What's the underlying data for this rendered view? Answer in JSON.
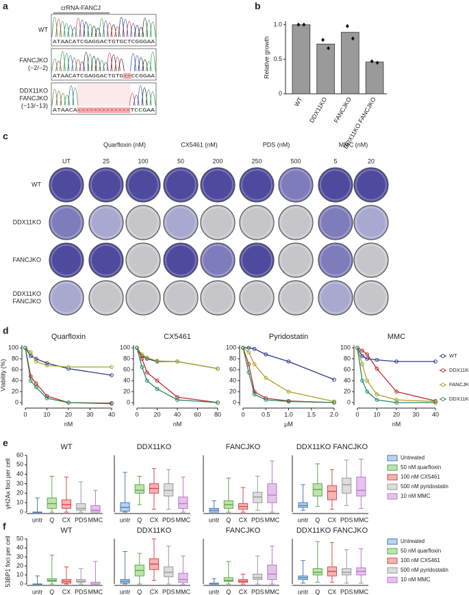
{
  "panel_labels": [
    "a",
    "b",
    "c",
    "d",
    "e",
    "f"
  ],
  "panel_a": {
    "header": "crRNA-FANCJ",
    "deletion_color": "#f4a6a6",
    "rows": [
      {
        "label": [
          "WT"
        ],
        "sequence": "ATAACATCGAGGACTGTGCTCGGGAA"
      },
      {
        "label": [
          "FANCJKO",
          "(−2/−2)"
        ],
        "sequence": "ATAACATCGAGGACTGTG--CCGGAA"
      },
      {
        "label": [
          "DDX11KO",
          "FANCJKO",
          "(−13/−13)"
        ],
        "sequence": "ATAACA-------------TCCGAA"
      }
    ]
  },
  "panel_c": {
    "groups": [
      "Quarfloxin (nM)",
      "CX5461 (nM)",
      "PDS (nM)",
      "MMC (nM)"
    ],
    "columns": [
      "UT",
      "25",
      "100",
      "50",
      "200",
      "250",
      "500",
      "5",
      "20"
    ],
    "rows": [
      [
        "WT"
      ],
      [
        "DDX11KO"
      ],
      [
        "FANCJKO"
      ],
      [
        "DDX11KO",
        "FANCJKO"
      ]
    ],
    "plate_colors": [
      [
        "#4e4a9e",
        "#4e4a9e",
        "#4e4a9e",
        "#4e4a9e",
        "#4e4a9e",
        "#4e4a9e",
        "#7f7cbc",
        "#4e4a9e",
        "#4e4a9e"
      ],
      [
        "#7f7cbc",
        "#a9a8cf",
        "#c6c6ca",
        "#a9a8cf",
        "#c6c6ca",
        "#c6c6ca",
        "#c6c6ca",
        "#7f7cbc",
        "#a9a8cf"
      ],
      [
        "#4e4a9e",
        "#4e4a9e",
        "#c6c6ca",
        "#4e4a9e",
        "#7f7cbc",
        "#4e4a9e",
        "#c6c6ca",
        "#7f7cbc",
        "#c6c6ca"
      ],
      [
        "#a9a8cf",
        "#c6c6ca",
        "#c6c6ca",
        "#c6c6ca",
        "#c6c6ca",
        "#c6c6ca",
        "#c6c6ca",
        "#a9a8cf",
        "#c6c6ca"
      ]
    ]
  },
  "chart_data": [
    {
      "type": "bar",
      "ylabel": "Relative growth",
      "categories": [
        "WT",
        "DDX11KO",
        "FANCJKO",
        "DDX11KO FANCJKO"
      ],
      "values": [
        1.0,
        0.72,
        0.89,
        0.46
      ],
      "points": [
        [
          1.0,
          1.0
        ],
        [
          0.78,
          0.66
        ],
        [
          0.98,
          0.8
        ],
        [
          0.47,
          0.45
        ]
      ],
      "color": "#9a9a9a",
      "ylim": [
        0,
        1.05
      ],
      "yticks": [
        0,
        0.5,
        {
          "value": 1,
          "label": "1.0"
        }
      ]
    },
    {
      "type": "line",
      "title": "Quarfloxin",
      "xlabel": "nM",
      "ylabel": "Viability (%)",
      "x": [
        0,
        2.5,
        5,
        10,
        20,
        40
      ],
      "xlim": [
        0,
        40
      ],
      "xticks": [
        0,
        10,
        20,
        30,
        40
      ],
      "ylim": [
        -5,
        105
      ],
      "yticks": [
        0,
        20,
        40,
        60,
        80,
        100
      ],
      "series": [
        {
          "name": "WT",
          "color": "#2b3a87",
          "values": [
            100,
            85,
            80,
            72,
            62,
            50
          ]
        },
        {
          "name": "DDX11KO",
          "color": "#c0282a",
          "values": [
            100,
            48,
            35,
            12,
            0,
            -1
          ]
        },
        {
          "name": "FANCJKO",
          "color": "#a8a024",
          "values": [
            100,
            92,
            75,
            68,
            65,
            65
          ]
        },
        {
          "name": "DDX11KO FANCJKO",
          "color": "#1f8a5c",
          "values": [
            100,
            40,
            28,
            8,
            0,
            -2
          ]
        }
      ]
    },
    {
      "type": "line",
      "title": "CX5461",
      "xlabel": "nM",
      "x": [
        0,
        5,
        10,
        20,
        40,
        80
      ],
      "xlim": [
        0,
        80
      ],
      "xticks": [
        0,
        20,
        40,
        60,
        80
      ],
      "ylim": [
        -5,
        105
      ],
      "yticks": [
        0,
        20,
        40,
        60,
        80,
        100
      ],
      "series": [
        {
          "name": "WT",
          "color": "#2b3a87",
          "values": [
            100,
            85,
            80,
            75,
            75,
            62
          ]
        },
        {
          "name": "DDX11KO",
          "color": "#c0282a",
          "values": [
            100,
            80,
            55,
            40,
            10,
            0
          ]
        },
        {
          "name": "FANCJKO",
          "color": "#a8a024",
          "values": [
            100,
            88,
            82,
            76,
            75,
            62
          ]
        },
        {
          "name": "DDX11KO FANCJKO",
          "color": "#1f8a5c",
          "values": [
            100,
            65,
            40,
            25,
            5,
            0
          ]
        }
      ]
    },
    {
      "type": "line",
      "title": "Pyridostatin",
      "xlabel": "μM",
      "x": [
        0,
        0.125,
        0.25,
        0.5,
        1,
        2
      ],
      "xlim": [
        0,
        2
      ],
      "xticks": [
        0,
        0.5,
        {
          "value": 1,
          "label": "1.0"
        },
        1.5,
        {
          "value": 2,
          "label": "2.0"
        }
      ],
      "ylim": [
        -5,
        105
      ],
      "yticks": [
        0,
        20,
        40,
        60,
        80,
        100
      ],
      "series": [
        {
          "name": "WT",
          "color": "#2b3a87",
          "values": [
            100,
            100,
            98,
            88,
            75,
            42
          ]
        },
        {
          "name": "DDX11KO",
          "color": "#c0282a",
          "values": [
            100,
            70,
            20,
            8,
            3,
            0
          ]
        },
        {
          "name": "FANCJKO",
          "color": "#a8a024",
          "values": [
            100,
            92,
            70,
            45,
            20,
            2
          ]
        },
        {
          "name": "DDX11KO FANCJKO",
          "color": "#1f8a5c",
          "values": [
            100,
            55,
            15,
            5,
            2,
            0
          ]
        }
      ]
    },
    {
      "type": "line",
      "title": "MMC",
      "xlabel": "nM",
      "x": [
        0,
        2.5,
        5,
        10,
        20,
        40
      ],
      "legend": "right",
      "xlim": [
        0,
        40
      ],
      "xticks": [
        0,
        10,
        20,
        30,
        40
      ],
      "ylim": [
        -5,
        105
      ],
      "yticks": [
        0,
        20,
        40,
        60,
        80,
        100
      ],
      "series": [
        {
          "name": "WT",
          "color": "#2b3a87",
          "values": [
            100,
            85,
            80,
            78,
            75,
            75
          ]
        },
        {
          "name": "DDX11KO",
          "color": "#c0282a",
          "values": [
            100,
            95,
            88,
            62,
            20,
            3
          ]
        },
        {
          "name": "FANCJKO",
          "color": "#a8a024",
          "values": [
            100,
            70,
            40,
            15,
            5,
            2
          ]
        },
        {
          "name": "DDX11KO FANCJKO",
          "color": "#1f8a5c",
          "values": [
            100,
            40,
            20,
            5,
            0,
            0
          ]
        }
      ]
    },
    {
      "type": "box",
      "title": "WT",
      "ylabel": "γH2Ax foci per cell",
      "categories": [
        "untr",
        "Q",
        "CX",
        "PDS",
        "MMC"
      ],
      "ylim": [
        0,
        60
      ],
      "yticks": [
        0,
        10,
        20,
        30,
        40,
        50,
        60
      ],
      "whisker_low": [
        0,
        0,
        0,
        0,
        0
      ],
      "q1": [
        0,
        4,
        4,
        2,
        0
      ],
      "median": [
        0,
        9,
        8,
        4,
        2
      ],
      "q3": [
        0,
        15,
        13,
        9,
        7
      ],
      "whisker_high": [
        15,
        38,
        37,
        32,
        23
      ],
      "colors": [
        "#b7d3ee",
        "#bfe3ad",
        "#f6b3b3",
        "#dcdcdc",
        "#e6c3ec"
      ],
      "edge_colors": [
        "#4a78b8",
        "#5aa84a",
        "#d84848",
        "#9a9a9a",
        "#b878c8"
      ]
    },
    {
      "type": "box",
      "title": "DDX11KO",
      "categories": [
        "untr",
        "Q",
        "CX",
        "PDS",
        "MMC"
      ],
      "ylim": [
        0,
        60
      ],
      "whisker_low": [
        0,
        8,
        3,
        3,
        0
      ],
      "q1": [
        1,
        20,
        20,
        17,
        4
      ],
      "median": [
        5,
        23,
        25,
        23,
        9
      ],
      "q3": [
        10,
        29,
        30,
        30,
        16
      ],
      "whisker_high": [
        42,
        38,
        46,
        45,
        37
      ],
      "colors": [
        "#b7d3ee",
        "#bfe3ad",
        "#f6b3b3",
        "#dcdcdc",
        "#e6c3ec"
      ],
      "edge_colors": [
        "#4a78b8",
        "#5aa84a",
        "#d84848",
        "#9a9a9a",
        "#b878c8"
      ]
    },
    {
      "type": "box",
      "title": "FANCJKO",
      "categories": [
        "untr",
        "Q",
        "CX",
        "PDS",
        "MMC"
      ],
      "ylim": [
        0,
        60
      ],
      "whisker_low": [
        0,
        0,
        0,
        2,
        0
      ],
      "q1": [
        0,
        4,
        3,
        10,
        10
      ],
      "median": [
        2,
        8,
        6,
        16,
        18
      ],
      "q3": [
        4,
        12,
        9,
        21,
        30
      ],
      "whisker_high": [
        12,
        36,
        26,
        38,
        54
      ],
      "colors": [
        "#b7d3ee",
        "#bfe3ad",
        "#f6b3b3",
        "#dcdcdc",
        "#e6c3ec"
      ],
      "edge_colors": [
        "#4a78b8",
        "#5aa84a",
        "#d84848",
        "#9a9a9a",
        "#b878c8"
      ]
    },
    {
      "type": "box",
      "title": "DDX11KO FANCJKO",
      "categories": [
        "untr",
        "Q",
        "CX",
        "PDS",
        "MMC"
      ],
      "ylim": [
        0,
        60
      ],
      "legend": "right",
      "legend_names": [
        "Untreated",
        "50 nM quarfloxin",
        "100 nM CX5461",
        "500 nM pyridostatin",
        "10 nM MMC"
      ],
      "whisker_low": [
        2,
        6,
        3,
        7,
        4
      ],
      "q1": [
        5,
        17,
        13,
        20,
        17
      ],
      "median": [
        7,
        24,
        22,
        29,
        23
      ],
      "q3": [
        10,
        30,
        28,
        36,
        37
      ],
      "whisker_high": [
        29,
        51,
        45,
        55,
        56
      ],
      "colors": [
        "#b7d3ee",
        "#bfe3ad",
        "#f6b3b3",
        "#dcdcdc",
        "#e6c3ec"
      ],
      "edge_colors": [
        "#4a78b8",
        "#5aa84a",
        "#d84848",
        "#9a9a9a",
        "#b878c8"
      ]
    },
    {
      "type": "box",
      "title": "WT",
      "ylabel": "53BP1 foci per cell",
      "categories": [
        "untr",
        "Q",
        "CX",
        "PDS",
        "MMC"
      ],
      "ylim": [
        0,
        50
      ],
      "yticks": [
        0,
        10,
        20,
        30,
        40,
        50
      ],
      "whisker_low": [
        0,
        0,
        0,
        0,
        0
      ],
      "q1": [
        0,
        3,
        1,
        2,
        0
      ],
      "median": [
        0,
        4,
        3,
        3,
        0
      ],
      "q3": [
        0,
        6,
        5,
        5,
        2
      ],
      "whisker_high": [
        9,
        32,
        19,
        17,
        25
      ],
      "colors": [
        "#b7d3ee",
        "#bfe3ad",
        "#f6b3b3",
        "#dcdcdc",
        "#e6c3ec"
      ],
      "edge_colors": [
        "#4a78b8",
        "#5aa84a",
        "#d84848",
        "#9a9a9a",
        "#b878c8"
      ]
    },
    {
      "type": "box",
      "title": "DDX11KO",
      "categories": [
        "untr",
        "Q",
        "CX",
        "PDS",
        "MMC"
      ],
      "ylim": [
        0,
        50
      ],
      "whisker_low": [
        0,
        0,
        4,
        0,
        0
      ],
      "q1": [
        1,
        9,
        16,
        8,
        2
      ],
      "median": [
        3,
        15,
        22,
        13,
        5
      ],
      "q3": [
        5,
        21,
        28,
        19,
        12
      ],
      "whisker_high": [
        36,
        34,
        50,
        42,
        31
      ],
      "colors": [
        "#b7d3ee",
        "#bfe3ad",
        "#f6b3b3",
        "#dcdcdc",
        "#e6c3ec"
      ],
      "edge_colors": [
        "#4a78b8",
        "#5aa84a",
        "#d84848",
        "#9a9a9a",
        "#b878c8"
      ]
    },
    {
      "type": "box",
      "title": "FANCJKO",
      "categories": [
        "untr",
        "Q",
        "CX",
        "PDS",
        "MMC"
      ],
      "ylim": [
        0,
        50
      ],
      "whisker_low": [
        0,
        0,
        0,
        0,
        0
      ],
      "q1": [
        0,
        3,
        2,
        5,
        5
      ],
      "median": [
        0,
        4,
        3,
        7,
        11
      ],
      "q3": [
        1,
        7,
        5,
        11,
        21
      ],
      "whisker_high": [
        6,
        25,
        11,
        31,
        42
      ],
      "colors": [
        "#b7d3ee",
        "#bfe3ad",
        "#f6b3b3",
        "#dcdcdc",
        "#e6c3ec"
      ],
      "edge_colors": [
        "#4a78b8",
        "#5aa84a",
        "#d84848",
        "#9a9a9a",
        "#b878c8"
      ]
    },
    {
      "type": "box",
      "title": "DDX11KO FANCJKO",
      "categories": [
        "untr",
        "Q",
        "CX",
        "PDS",
        "MMC"
      ],
      "ylim": [
        0,
        50
      ],
      "legend": "right",
      "legend_names": [
        "Untreated",
        "50 nM quarfloxin",
        "100 nM CX5461",
        "500 nM pyridostatin",
        "10 nM MMC"
      ],
      "whisker_low": [
        1,
        2,
        2,
        1,
        1
      ],
      "q1": [
        5,
        10,
        9,
        10,
        10
      ],
      "median": [
        7,
        13,
        14,
        13,
        14
      ],
      "q3": [
        9,
        17,
        19,
        17,
        18
      ],
      "whisker_high": [
        26,
        47,
        46,
        38,
        39
      ],
      "colors": [
        "#b7d3ee",
        "#bfe3ad",
        "#f6b3b3",
        "#dcdcdc",
        "#e6c3ec"
      ],
      "edge_colors": [
        "#4a78b8",
        "#5aa84a",
        "#d84848",
        "#9a9a9a",
        "#b878c8"
      ]
    }
  ]
}
